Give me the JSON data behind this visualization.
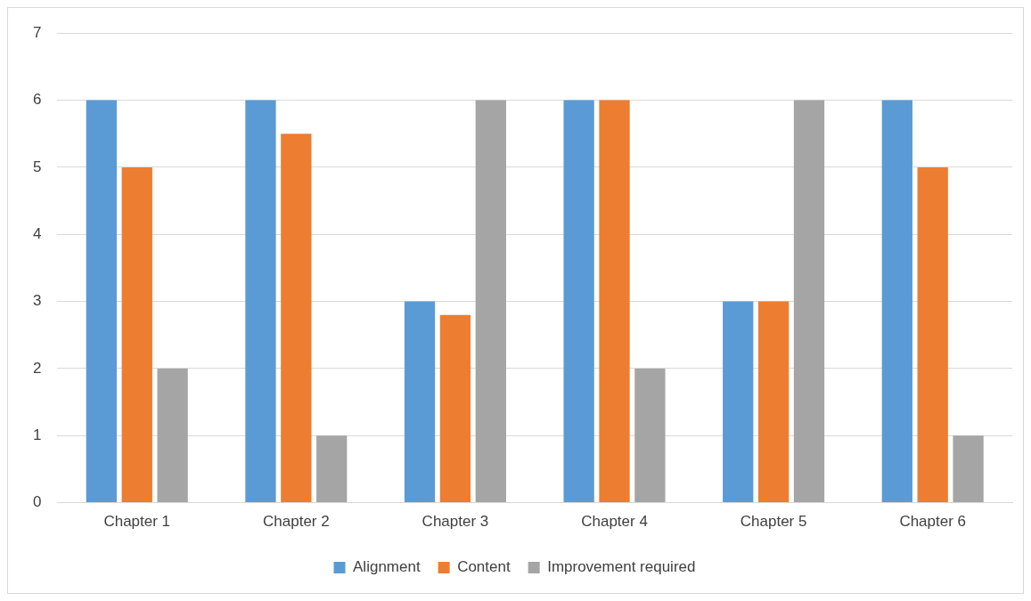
{
  "chart_data": {
    "type": "bar",
    "categories": [
      "Chapter 1",
      "Chapter 2",
      "Chapter 3",
      "Chapter 4",
      "Chapter 5",
      "Chapter 6"
    ],
    "series": [
      {
        "name": "Alignment",
        "color": "#5b9bd5",
        "values": [
          6,
          6,
          3,
          6,
          3,
          6
        ]
      },
      {
        "name": "Content",
        "color": "#ed7d31",
        "values": [
          5,
          5.5,
          2.8,
          6,
          3,
          5
        ]
      },
      {
        "name": "Improvement required",
        "color": "#a5a5a5",
        "values": [
          2,
          1,
          6,
          2,
          6,
          1
        ]
      }
    ],
    "ylim": [
      0,
      7
    ],
    "yticks": [
      0,
      1,
      2,
      3,
      4,
      5,
      6,
      7
    ],
    "grid": "y",
    "legend": "bottom"
  }
}
